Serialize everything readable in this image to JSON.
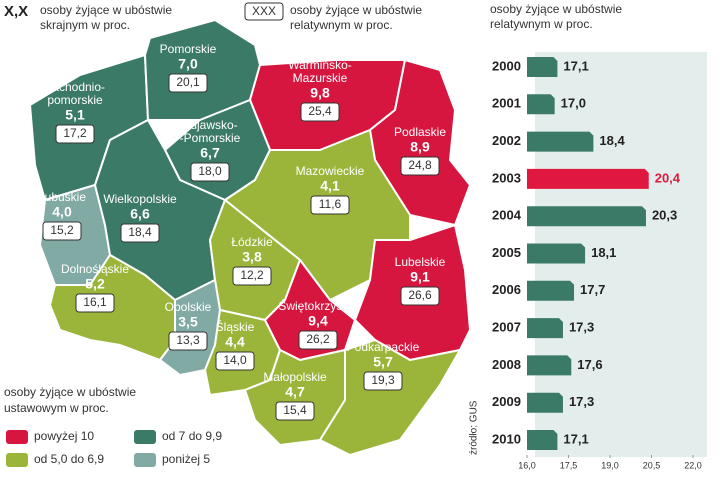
{
  "header": {
    "mark": "X,X",
    "mark_text": [
      "osoby żyjące w ubóstwie",
      "skrajnym w proc."
    ],
    "box": "XXX",
    "box_text": [
      "osoby żyjące w ubóstwie",
      "relatywnym w proc."
    ]
  },
  "legend": {
    "title": [
      "osoby żyjące w ubóstwie",
      "ustawowym w proc."
    ],
    "items": [
      {
        "label": "powyżej 10",
        "color": "#d7163f"
      },
      {
        "label": "od 7 do 9,9",
        "color": "#3c7a68"
      },
      {
        "label": "od 5,0 do 6,9",
        "color": "#9bb53a"
      },
      {
        "label": "poniżej 5",
        "color": "#82aaa4"
      }
    ]
  },
  "regions": [
    {
      "name": [
        "Zachodnio-",
        "pomorskie"
      ],
      "extreme": "5,1",
      "relative": "17,2",
      "category": 1
    },
    {
      "name": [
        "Pomorskie"
      ],
      "extreme": "7,0",
      "relative": "20,1",
      "category": 1
    },
    {
      "name": [
        "Warmińsko-",
        "Mazurskie"
      ],
      "extreme": "9,8",
      "relative": "25,4",
      "category": 0
    },
    {
      "name": [
        "Podlaskie"
      ],
      "extreme": "8,9",
      "relative": "24,8",
      "category": 0
    },
    {
      "name": [
        "Kujawsko-",
        "-Pomorskie"
      ],
      "extreme": "6,7",
      "relative": "18,0",
      "category": 1
    },
    {
      "name": [
        "Lubuskie"
      ],
      "extreme": "4,0",
      "relative": "15,2",
      "category": 3
    },
    {
      "name": [
        "Wielkopolskie"
      ],
      "extreme": "6,6",
      "relative": "18,4",
      "category": 1
    },
    {
      "name": [
        "Mazowieckie"
      ],
      "extreme": "4,1",
      "relative": "11,6",
      "category": 2
    },
    {
      "name": [
        "Łódzkie"
      ],
      "extreme": "3,8",
      "relative": "12,2",
      "category": 2
    },
    {
      "name": [
        "Dolnośląskie"
      ],
      "extreme": "5,2",
      "relative": "16,1",
      "category": 2
    },
    {
      "name": [
        "Opolskie"
      ],
      "extreme": "3,5",
      "relative": "13,3",
      "category": 3
    },
    {
      "name": [
        "Śląskie"
      ],
      "extreme": "4,4",
      "relative": "14,0",
      "category": 2
    },
    {
      "name": [
        "Świętokrzyskie"
      ],
      "extreme": "9,4",
      "relative": "26,2",
      "category": 0
    },
    {
      "name": [
        "Lubelskie"
      ],
      "extreme": "9,1",
      "relative": "26,6",
      "category": 0
    },
    {
      "name": [
        "Małopolskie"
      ],
      "extreme": "4,7",
      "relative": "15,4",
      "category": 2
    },
    {
      "name": [
        "Podkarpackie"
      ],
      "extreme": "5,7",
      "relative": "19,3",
      "category": 2
    }
  ],
  "source": "źródło: GUS",
  "chart_data": {
    "type": "bar",
    "orientation": "horizontal",
    "title": [
      "osoby żyjące w ubóstwie",
      "relatywnym w proc."
    ],
    "categories": [
      "2000",
      "2001",
      "2002",
      "2003",
      "2004",
      "2005",
      "2006",
      "2007",
      "2008",
      "2009",
      "2010"
    ],
    "values": [
      17.1,
      17.0,
      18.4,
      20.4,
      20.3,
      18.1,
      17.7,
      17.3,
      17.6,
      17.3,
      17.1
    ],
    "value_labels": [
      "17,1",
      "17,0",
      "18,4",
      "20,4",
      "20,3",
      "18,1",
      "17,7",
      "17,3",
      "17,6",
      "17,3",
      "17,1"
    ],
    "color": "#3c7a68",
    "highlight": {
      "index": 3,
      "color": "#e0183f"
    },
    "xlim": [
      16,
      22
    ],
    "xticks": [
      {
        "value": 16,
        "label": "16,0"
      },
      {
        "value": 17.5,
        "label": "17,5"
      },
      {
        "value": 19,
        "label": "19,0"
      },
      {
        "value": 20.5,
        "label": "20,5"
      },
      {
        "value": 22,
        "label": "22,0"
      }
    ],
    "grid": false
  }
}
